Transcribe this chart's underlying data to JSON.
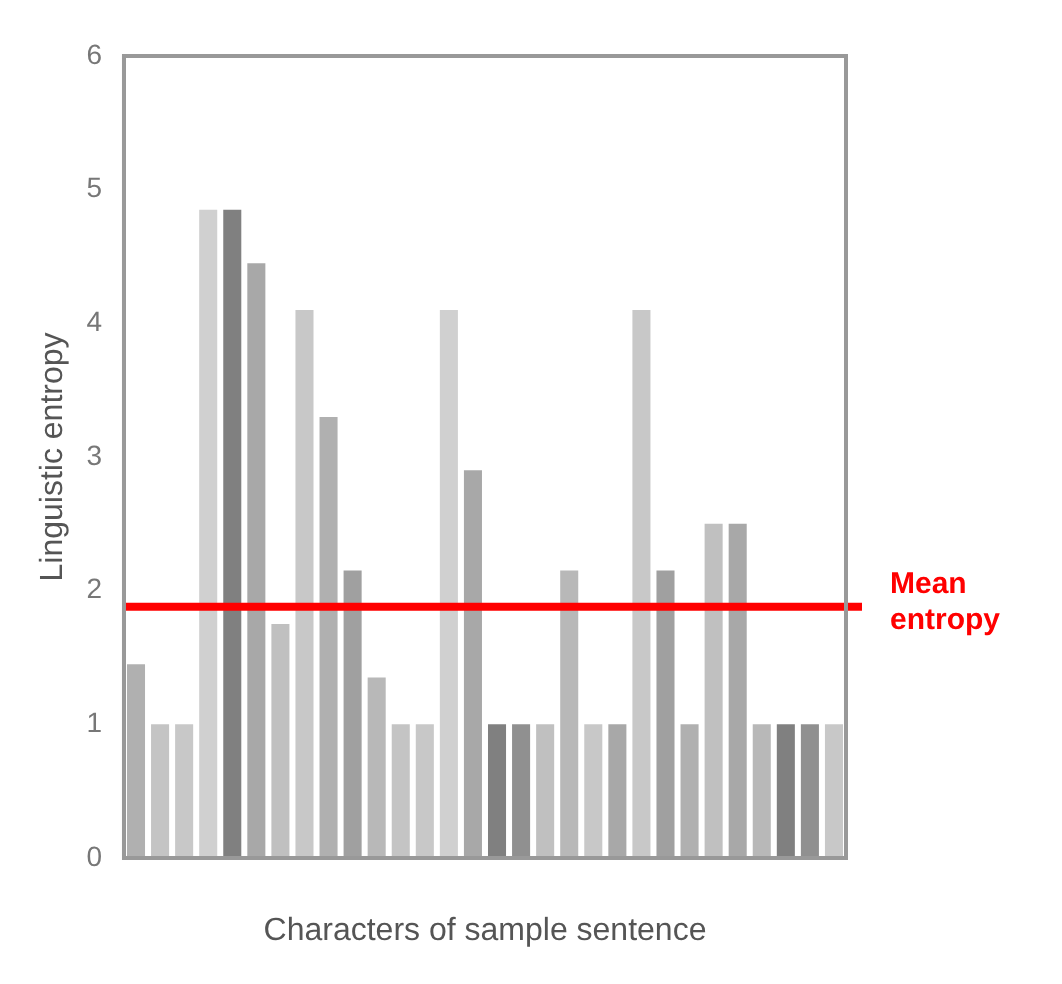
{
  "chart_data": {
    "type": "bar",
    "xlabel": "Characters of sample sentence",
    "ylabel": "Linguistic entropy",
    "categories": [
      null,
      null,
      null,
      null,
      null,
      null,
      null,
      null,
      null,
      null,
      null,
      null,
      null,
      null,
      null,
      null,
      null,
      null,
      null,
      null,
      null,
      null,
      null,
      null,
      null,
      null,
      null,
      null,
      null,
      null
    ],
    "values": [
      1.45,
      1,
      1,
      4.85,
      4.85,
      4.45,
      1.75,
      4.1,
      3.3,
      2.15,
      1.35,
      1,
      1,
      4.1,
      2.9,
      1,
      1,
      1,
      2.15,
      1,
      1,
      4.1,
      2.15,
      1,
      2.5,
      2.5,
      1,
      1,
      1,
      1
    ],
    "colors": [
      "#b0b0b0",
      "#c4c4c4",
      "#c8c8c8",
      "#d0d0d0",
      "#808080",
      "#a8a8a8",
      "#c0c0c0",
      "#c8c8c8",
      "#b0b0b0",
      "#a0a0a0",
      "#b8b8b8",
      "#c4c4c4",
      "#c8c8c8",
      "#d0d0d0",
      "#a8a8a8",
      "#808080",
      "#909090",
      "#c0c0c0",
      "#b8b8b8",
      "#c8c8c8",
      "#a8a8a8",
      "#c8c8c8",
      "#a0a0a0",
      "#b0b0b0",
      "#c0c0c0",
      "#a8a8a8",
      "#b8b8b8",
      "#808080",
      "#909090",
      "#c8c8c8"
    ],
    "ylim": [
      0,
      6
    ],
    "yticks": [
      0,
      1,
      2,
      3,
      4,
      5,
      6
    ],
    "ref_lines": [
      {
        "axis": "y",
        "value": 1.88,
        "label": "Mean\nentropy",
        "color": "#ff0000"
      }
    ],
    "grid": false,
    "legend": false
  }
}
